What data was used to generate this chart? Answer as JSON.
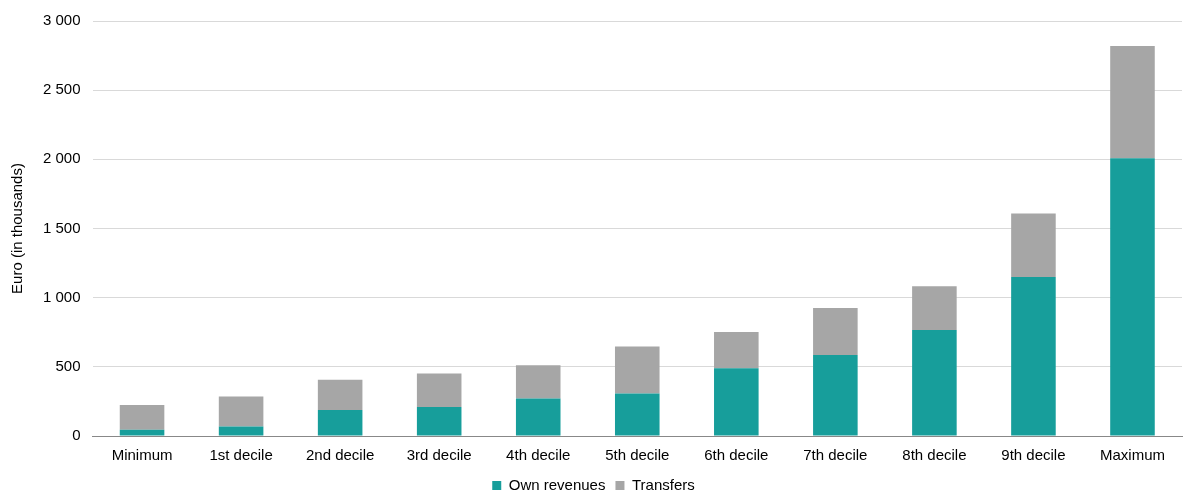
{
  "chart_data": {
    "type": "bar",
    "stacked": true,
    "ylabel": "Euro (in thousands)",
    "categories": [
      "Minimum",
      "1st decile",
      "2nd decile",
      "3rd decile",
      "4th decile",
      "5th decile",
      "6th decile",
      "7th decile",
      "8th decile",
      "9th decile",
      "Maximum"
    ],
    "series": [
      {
        "name": "Own revenues",
        "color": "#179e9b",
        "values": [
          45,
          68,
          188,
          210,
          271,
          308,
          489,
          586,
          767,
          1150,
          2008
        ]
      },
      {
        "name": "Transfers",
        "color": "#a6a6a6",
        "values": [
          180,
          218,
          218,
          241,
          240,
          339,
          263,
          339,
          316,
          459,
          812
        ]
      }
    ],
    "ylim": [
      0,
      3000
    ],
    "yticks": [
      {
        "value": 0,
        "label": "0"
      },
      {
        "value": 500,
        "label": "500"
      },
      {
        "value": 1000,
        "label": "1 000"
      },
      {
        "value": 1500,
        "label": "1 500"
      },
      {
        "value": 2000,
        "label": "2 000"
      },
      {
        "value": 2500,
        "label": "2 500"
      },
      {
        "value": 3000,
        "label": "3 000"
      }
    ],
    "grid": "y",
    "legend": "bottom"
  }
}
